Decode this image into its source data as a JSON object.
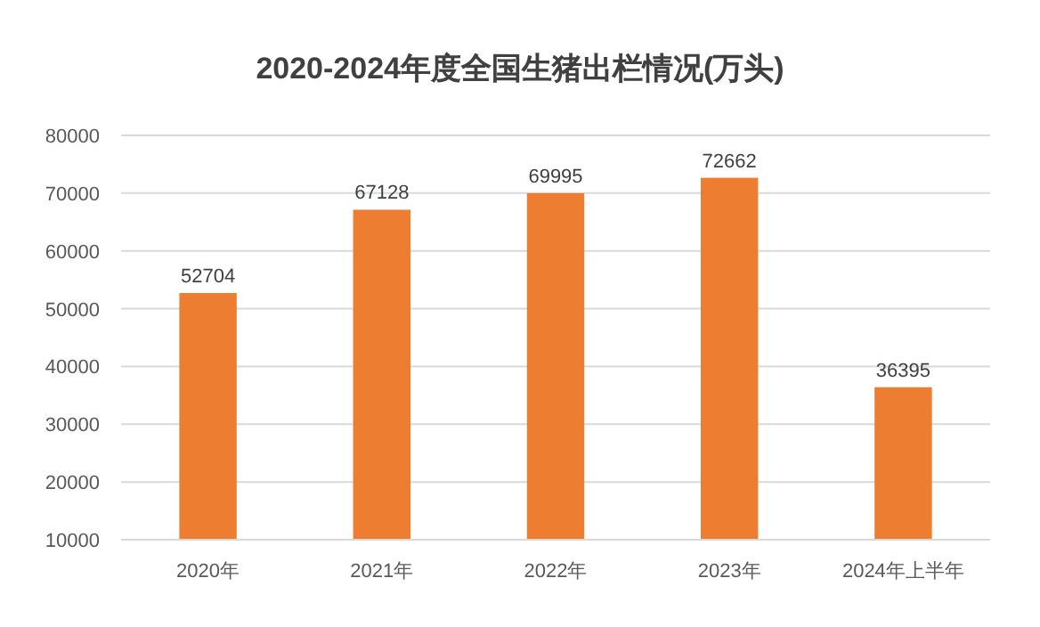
{
  "chart_data": {
    "type": "bar",
    "title": "2020-2024年度全国生猪出栏情况(万头)",
    "categories": [
      "2020年",
      "2021年",
      "2022年",
      "2023年",
      "2024年上半年"
    ],
    "values": [
      52704,
      67128,
      69995,
      72662,
      36395
    ],
    "color": "#ed7d31",
    "ylim": [
      10000,
      80000
    ],
    "yticks": [
      10000,
      20000,
      30000,
      40000,
      50000,
      60000,
      70000,
      80000
    ],
    "grid": "y",
    "data_labels": true
  }
}
